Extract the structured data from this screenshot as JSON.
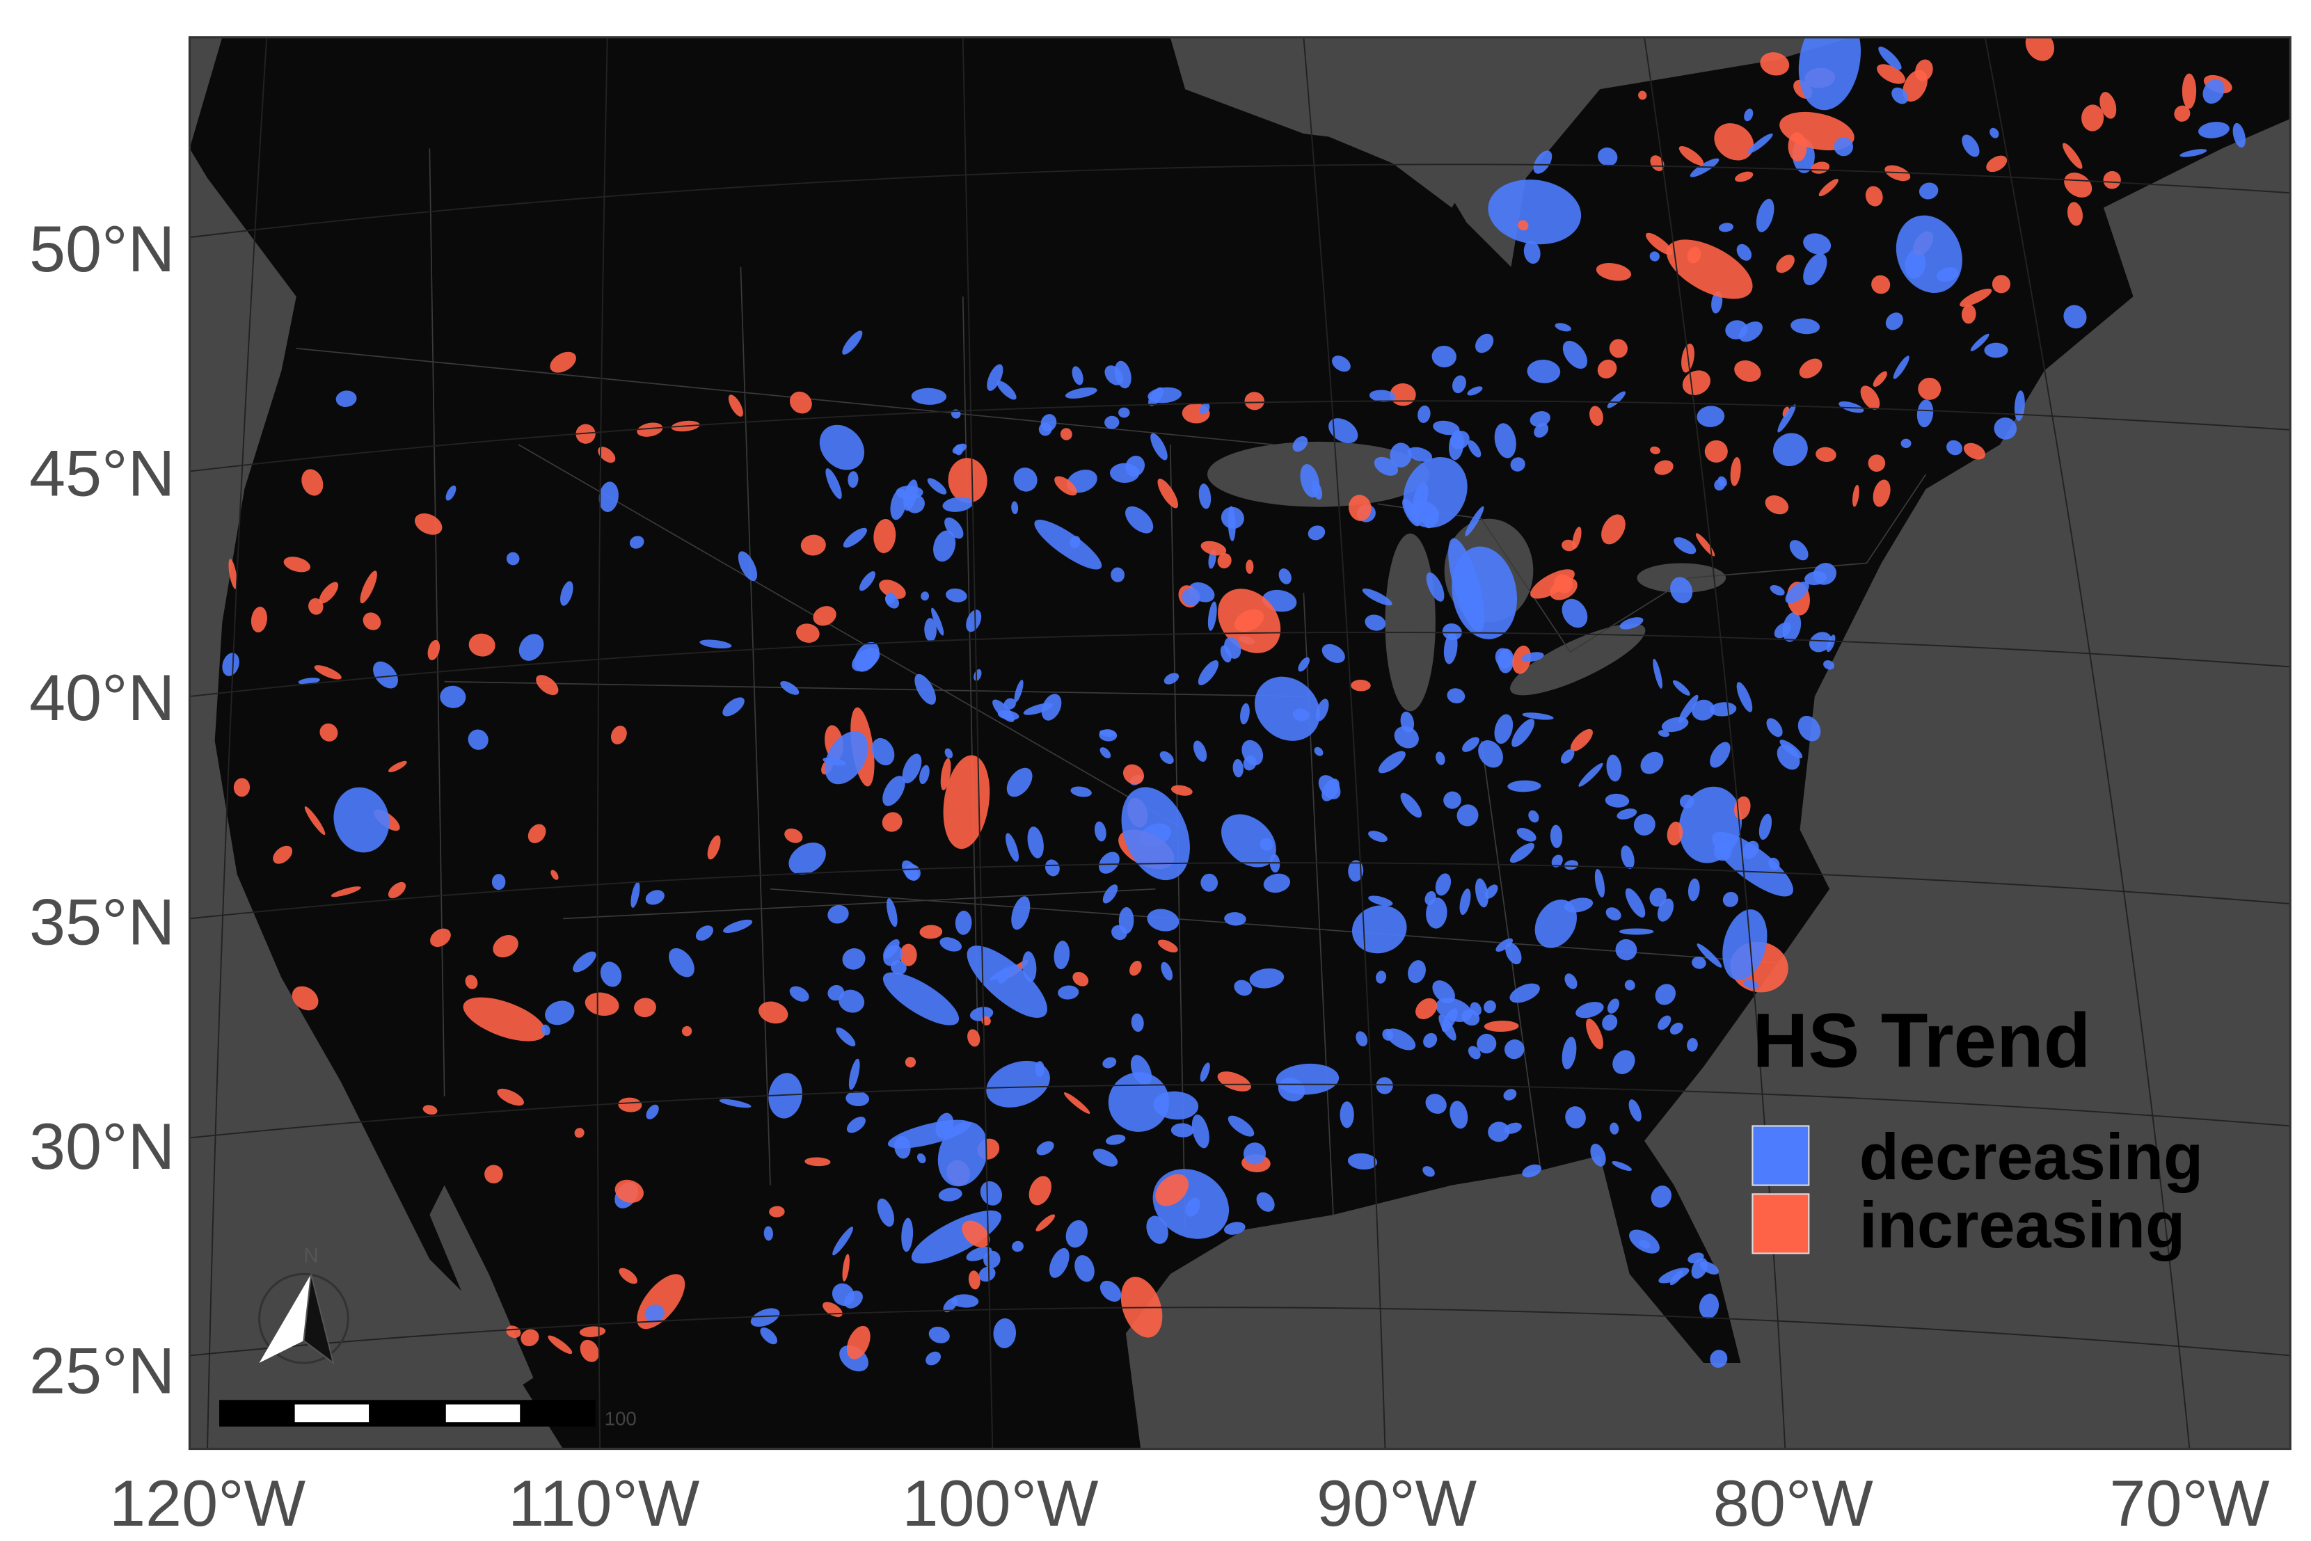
{
  "map": {
    "lat_ticks": [
      {
        "value": 50,
        "label": "50°N"
      },
      {
        "value": 45,
        "label": "45°N"
      },
      {
        "value": 40,
        "label": "40°N"
      },
      {
        "value": 35,
        "label": "35°N"
      },
      {
        "value": 30,
        "label": "30°N"
      },
      {
        "value": 25,
        "label": "25°N"
      }
    ],
    "lon_ticks": [
      {
        "value": -120,
        "label": "120°W"
      },
      {
        "value": -110,
        "label": "110°W"
      },
      {
        "value": -100,
        "label": "100°W"
      },
      {
        "value": -90,
        "label": "90°W"
      },
      {
        "value": -80,
        "label": "80°W"
      },
      {
        "value": -70,
        "label": "70°W"
      }
    ],
    "legend": {
      "title": "HS Trend",
      "entries": [
        {
          "label": "decreasing",
          "color": "#4d7cff"
        },
        {
          "label": "increasing",
          "color": "#ff6347"
        }
      ]
    },
    "north_arrow_label": "N",
    "scale_bar_label": "100"
  }
}
